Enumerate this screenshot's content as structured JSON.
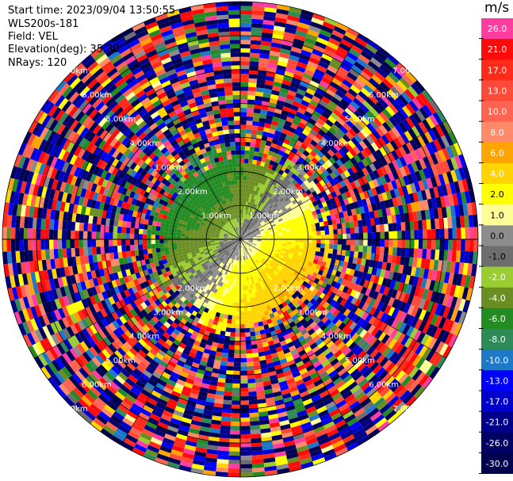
{
  "header": {
    "start_time": "Start time: 2023/09/04 13:50:55",
    "instrument": "WLS200s-181",
    "field": "Field: VEL",
    "elevation": "Elevation(deg): 35.30",
    "nrays": "NRays: 120"
  },
  "colorbar": {
    "unit": "m/s",
    "levels": [
      {
        "label": "26.0",
        "color": "#ff3ca0"
      },
      {
        "label": "21.0",
        "color": "#ff0a0a"
      },
      {
        "label": "17.0",
        "color": "#ff2a1a"
      },
      {
        "label": "13.0",
        "color": "#ff4a3a"
      },
      {
        "label": "10.0",
        "color": "#ff6450"
      },
      {
        "label": "8.0",
        "color": "#ff8a6a"
      },
      {
        "label": "6.0",
        "color": "#ffa400"
      },
      {
        "label": "4.0",
        "color": "#ffd400"
      },
      {
        "label": "2.0",
        "color": "#ffff00"
      },
      {
        "label": "1.0",
        "color": "#ffff96"
      },
      {
        "label": "0.0",
        "color": "#8c8c8c"
      },
      {
        "label": "-1.0",
        "color": "#6e6e6e"
      },
      {
        "label": "-2.0",
        "color": "#9acd32"
      },
      {
        "label": "-4.0",
        "color": "#6b8e23"
      },
      {
        "label": "-6.0",
        "color": "#228b22"
      },
      {
        "label": "-8.0",
        "color": "#2e8b57"
      },
      {
        "label": "-10.0",
        "color": "#1e78c8"
      },
      {
        "label": "-13.0",
        "color": "#0000ff"
      },
      {
        "label": "-17.0",
        "color": "#0000cd"
      },
      {
        "label": "-21.0",
        "color": "#00008b"
      },
      {
        "label": "-26.0",
        "color": "#000064"
      },
      {
        "label": "-30.0",
        "color": "#000050"
      }
    ]
  },
  "chart_data": {
    "type": "heatmap",
    "projection": "polar (PPI)",
    "field": "VEL",
    "units": "m/s",
    "rays": 120,
    "max_range_km": 7.0,
    "range_rings_km": [
      1.0,
      2.0,
      3.0,
      4.0,
      5.0,
      6.0,
      7.0
    ],
    "ring_labels": [
      "1.00km",
      "2.00km",
      "3.00km",
      "4.00km",
      "5.00km",
      "6.00km",
      "7.00km"
    ],
    "valid_data_range_km": 2.5,
    "pattern": "negative (blue/green) velocities toward upper-left, positive (yellow/orange) toward lower-right; beyond ~2.5 km noise"
  }
}
